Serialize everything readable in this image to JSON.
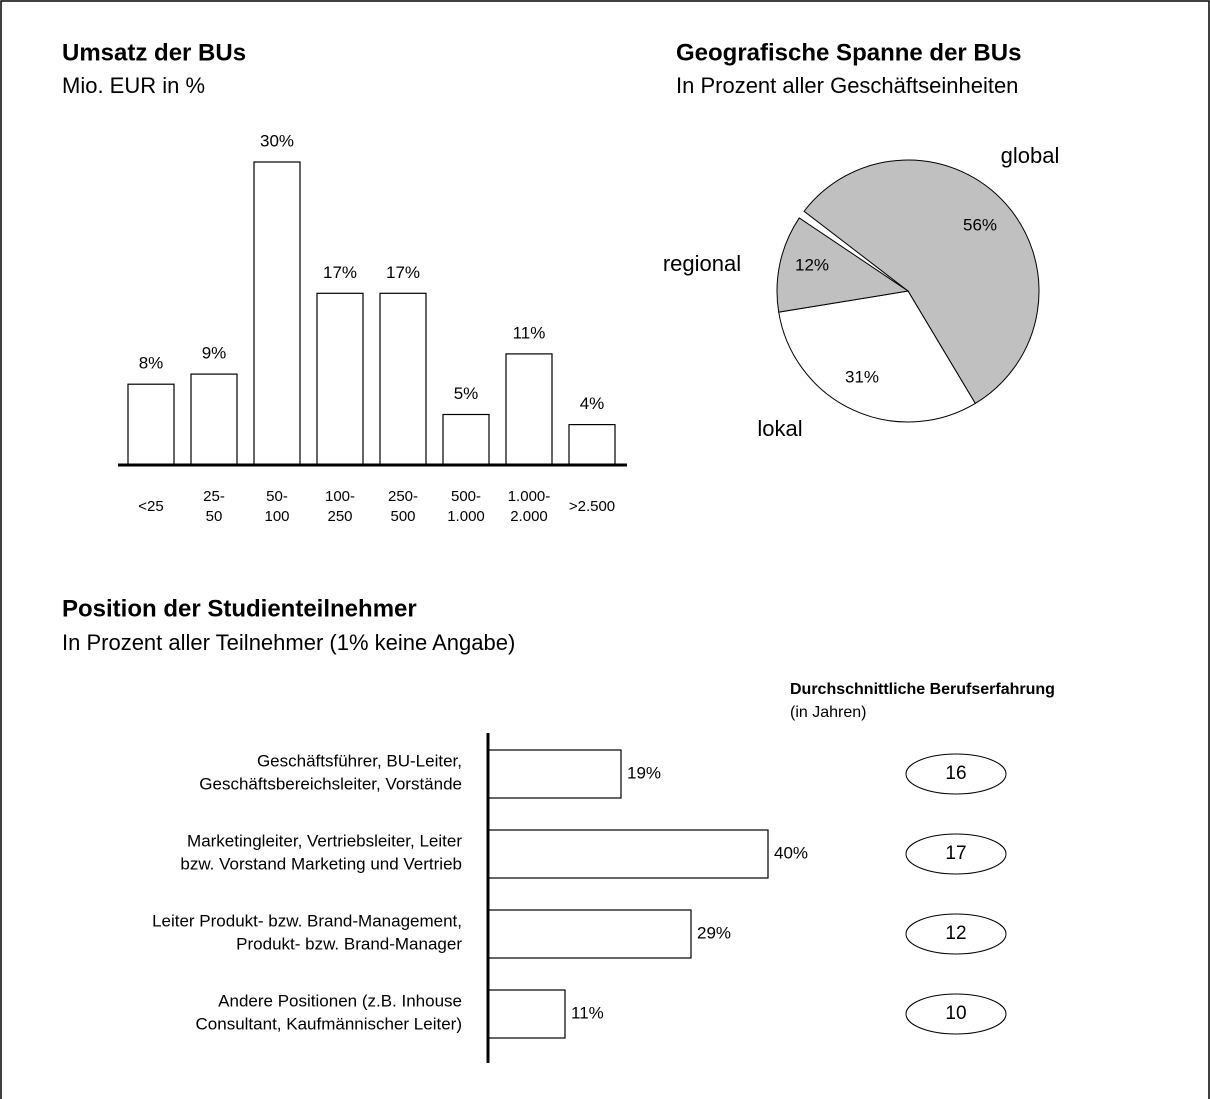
{
  "chart_data": [
    {
      "type": "bar",
      "title": "Umsatz der BUs",
      "subtitle": "Mio. EUR in %",
      "categories": [
        "<25",
        "25-\n50",
        "50-\n100",
        "100-\n250",
        "250-\n500",
        "500-\n1.000",
        "1.000-\n2.000",
        ">2.500"
      ],
      "values": [
        8,
        9,
        30,
        17,
        17,
        5,
        11,
        4
      ],
      "value_labels": [
        "8%",
        "9%",
        "30%",
        "17%",
        "17%",
        "5%",
        "11%",
        "4%"
      ],
      "color": "#ffffff"
    },
    {
      "type": "pie",
      "title": "Geografische Spanne der BUs",
      "subtitle": "In Prozent aller Geschäftseinheiten",
      "categories": [
        "global",
        "lokal",
        "regional"
      ],
      "values": [
        56,
        31,
        12
      ],
      "value_labels": [
        "56%",
        "31%",
        "12%"
      ],
      "colors": [
        "#c0c0c0",
        "#ffffff",
        "#c0c0c0"
      ]
    },
    {
      "type": "bar",
      "orientation": "horizontal",
      "title": "Position der Studienteilnehmer",
      "subtitle": "In Prozent aller Teilnehmer (1% keine Angabe)",
      "categories": [
        "Geschäftsführer, BU-Leiter,\nGeschäftsbereichsleiter, Vorstände",
        "Marketingleiter, Vertriebsleiter, Leiter\nbzw. Vorstand Marketing und Vertrieb",
        "Leiter Produkt- bzw. Brand-Management,\nProdukt- bzw. Brand-Manager",
        "Andere Positionen (z.B. Inhouse\nConsultant, Kaufmännischer Leiter)"
      ],
      "values": [
        19,
        40,
        29,
        11
      ],
      "value_labels": [
        "19%",
        "40%",
        "29%",
        "11%"
      ],
      "color": "#ffffff",
      "experience": {
        "title": "Durchschnittliche Berufserfahrung",
        "subtitle": "(in Jahren)",
        "values": [
          16,
          17,
          12,
          10
        ]
      }
    }
  ]
}
